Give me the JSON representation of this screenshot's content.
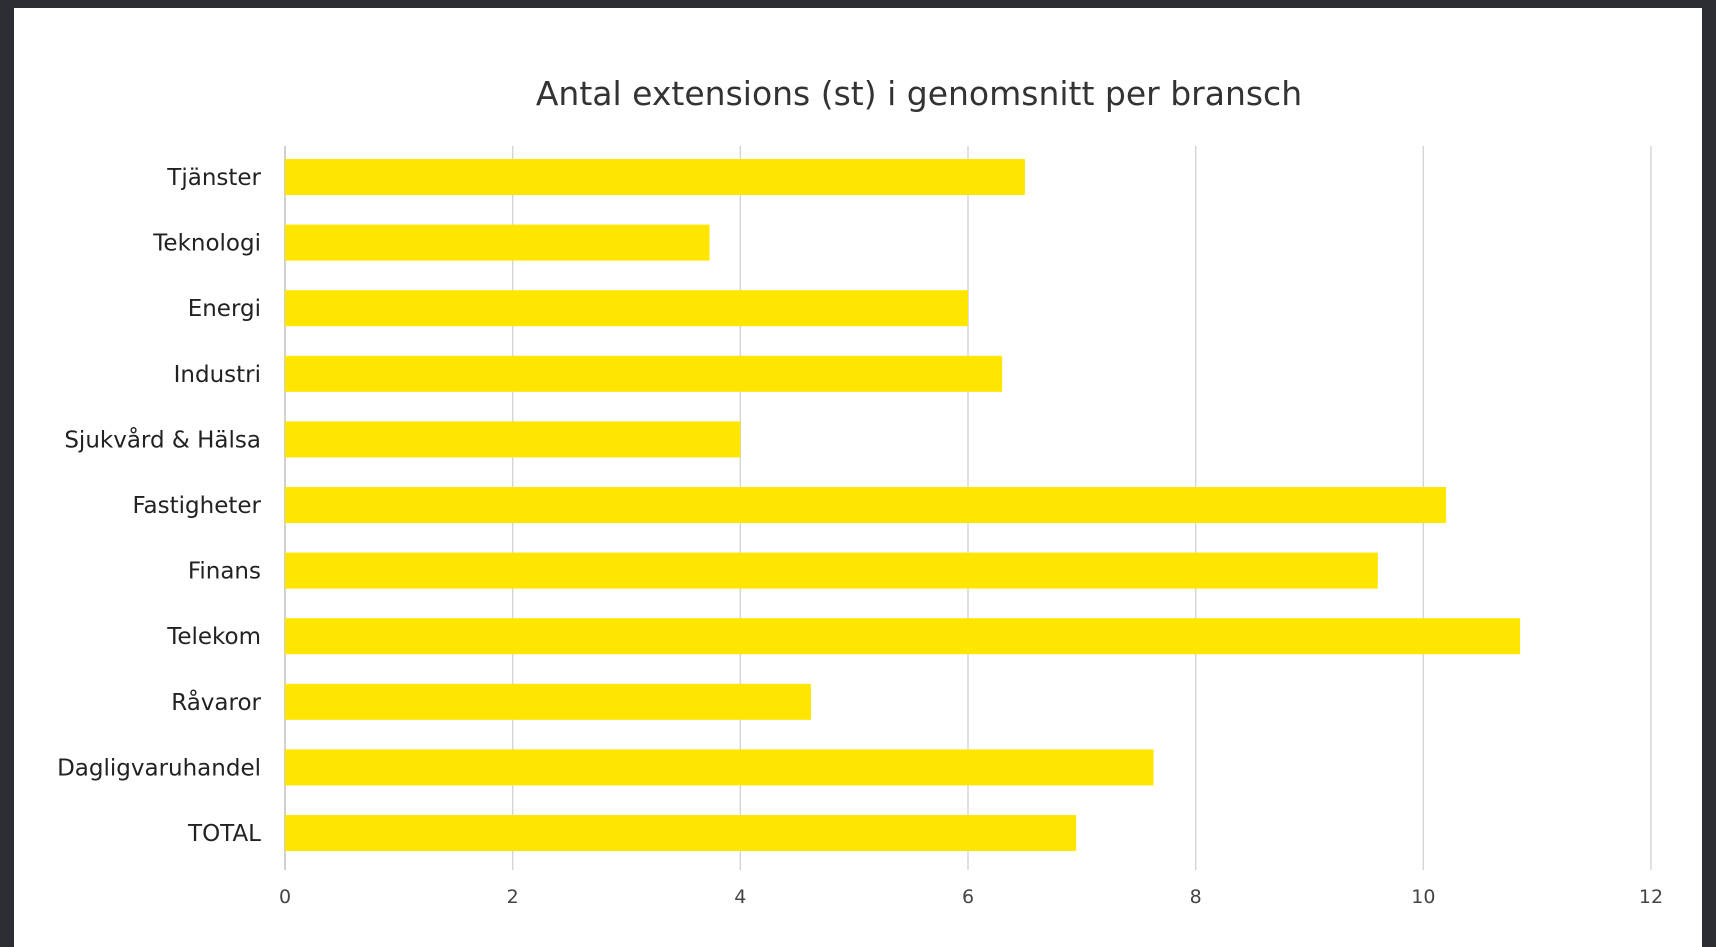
{
  "chart_data": {
    "type": "bar",
    "orientation": "horizontal",
    "title": "Antal extensions (st) i genomsnitt per bransch",
    "xlabel": "",
    "ylabel": "",
    "categories": [
      "Tjänster",
      "Teknologi",
      "Energi",
      "Industri",
      "Sjukvård & Hälsa",
      "Fastigheter",
      "Finans",
      "Telekom",
      "Råvaror",
      "Dagligvaruhandel",
      "TOTAL"
    ],
    "values": [
      6.5,
      3.73,
      6.0,
      6.3,
      4.0,
      10.2,
      9.6,
      10.85,
      4.62,
      7.63,
      6.95
    ],
    "xlim": [
      0,
      12
    ],
    "ticks": [
      "0",
      "2",
      "4",
      "6",
      "8",
      "10",
      "12"
    ],
    "grid": true,
    "legend": "none",
    "bar_color": "#ffe600"
  }
}
